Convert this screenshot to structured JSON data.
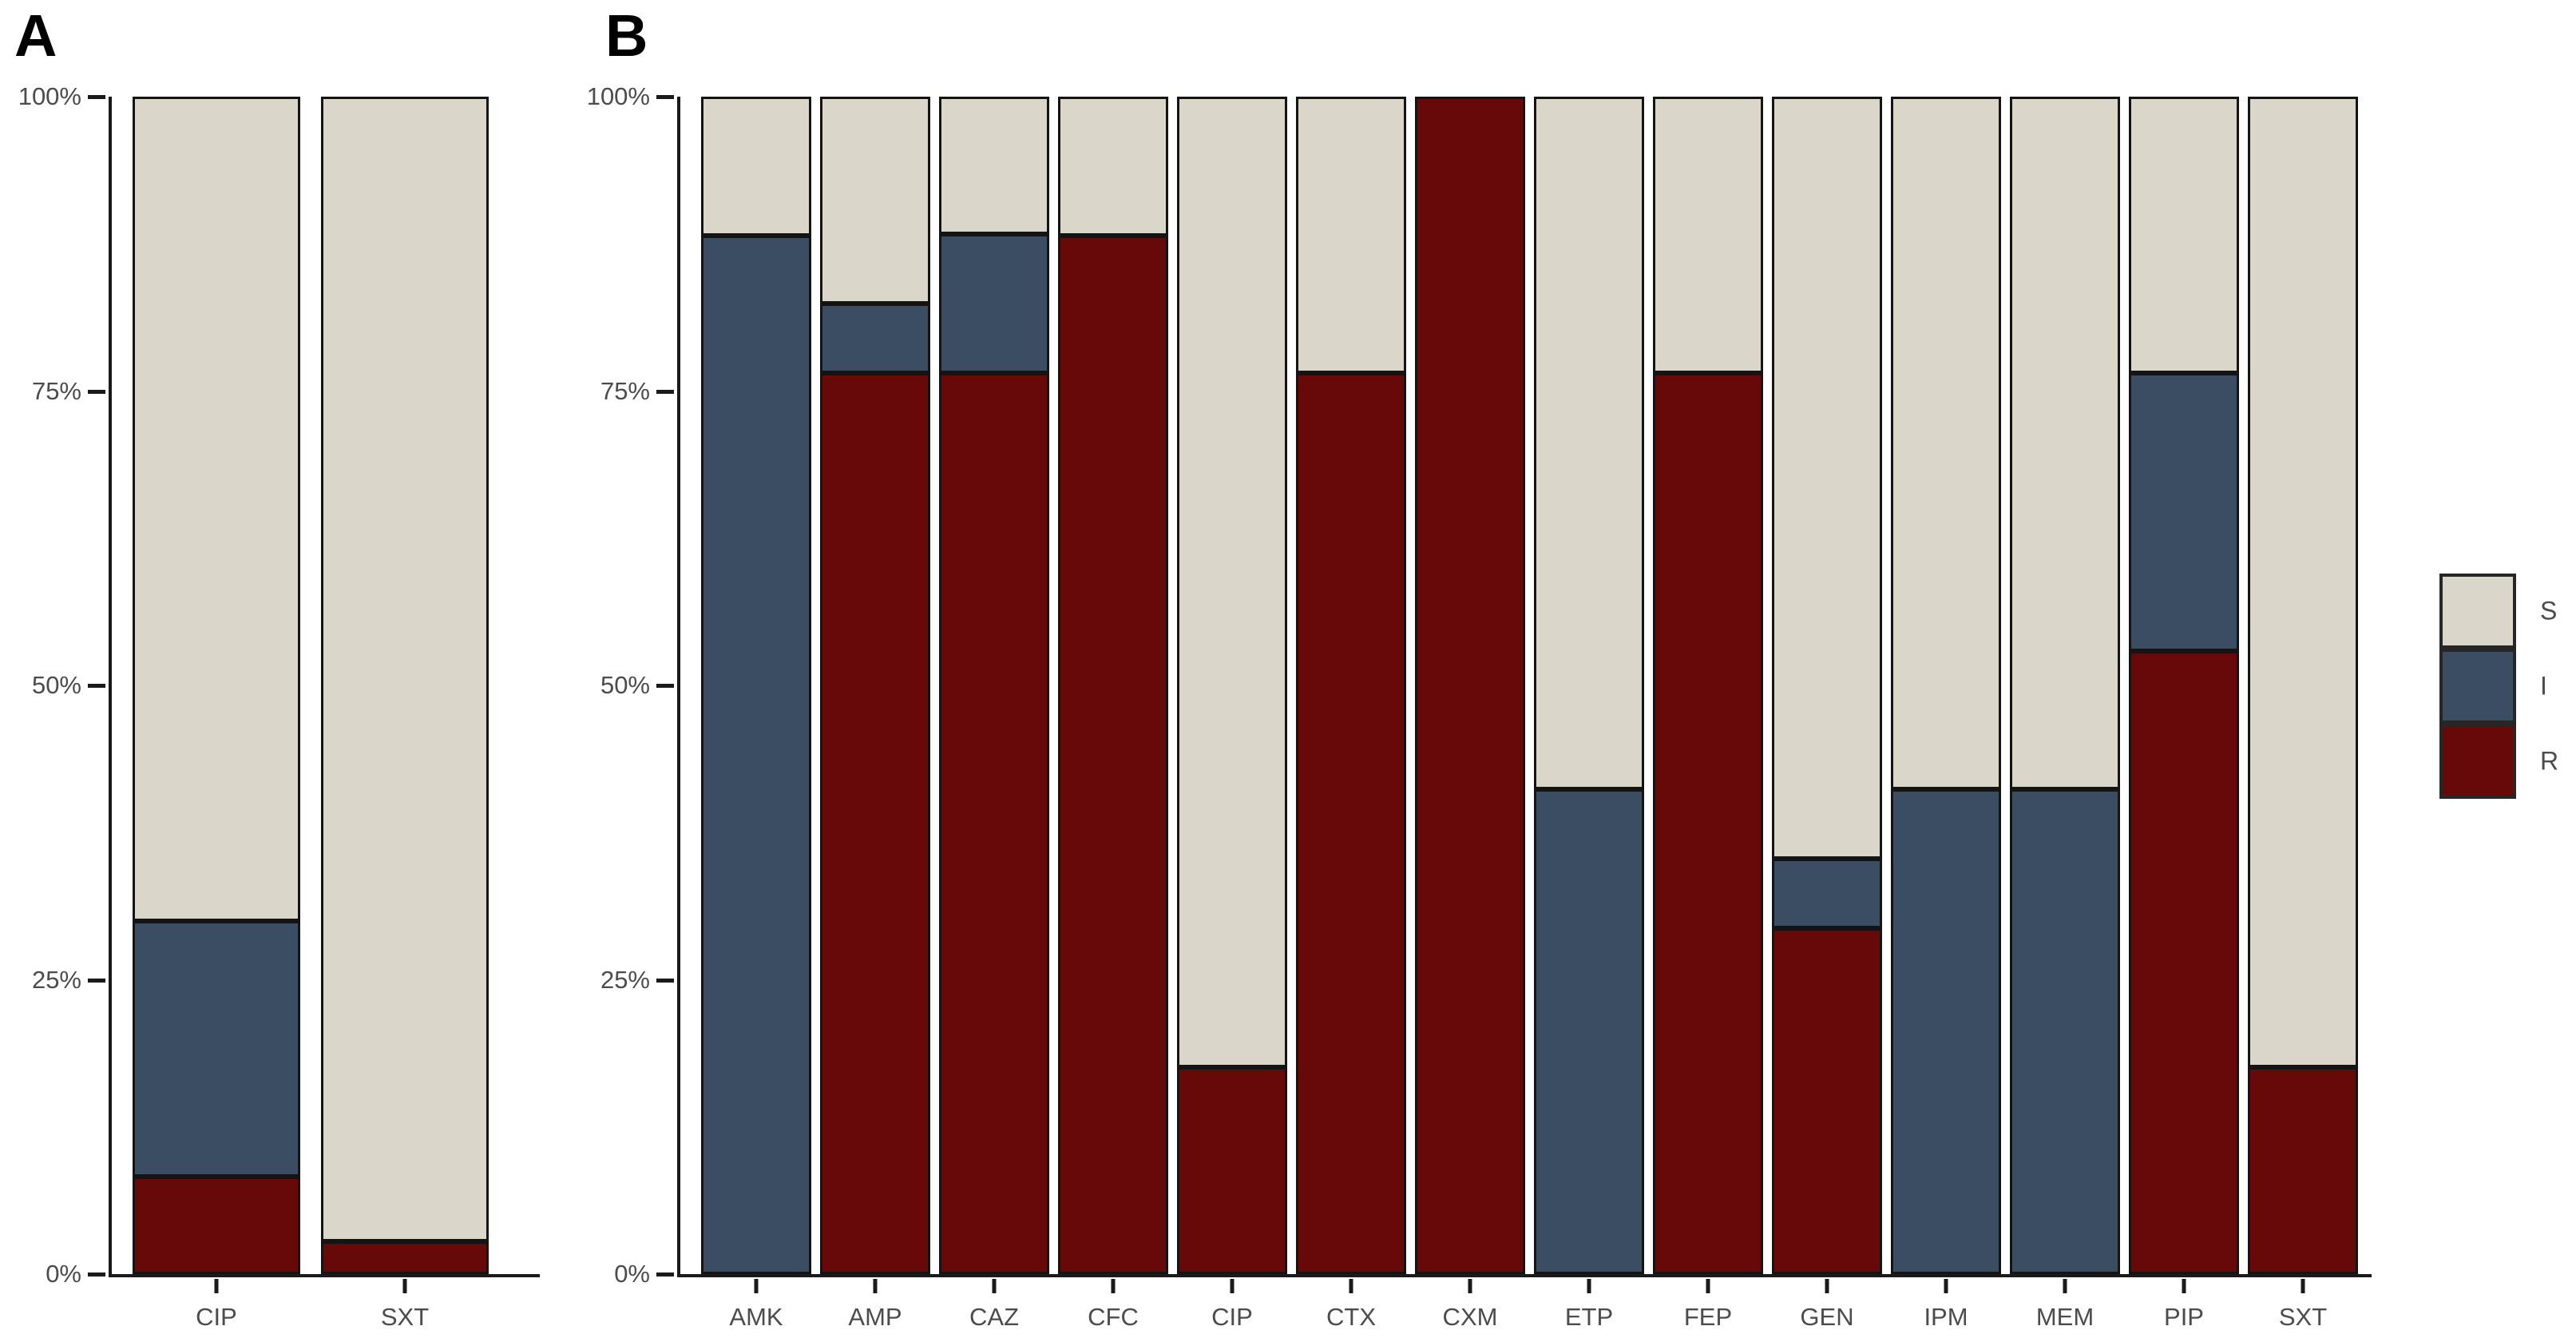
{
  "figure": {
    "panel_a_label": "A",
    "panel_b_label": "B"
  },
  "colors": {
    "S": "#dad6c9",
    "I": "#3b4d63",
    "R": "#670809",
    "outline": "#141414",
    "axis": "#1a1a1a",
    "tick_text": "#4c4c4c"
  },
  "legend": {
    "position": "right",
    "entries": [
      {
        "label": "S",
        "color": "#dad6c9"
      },
      {
        "label": "I",
        "color": "#3b4d63"
      },
      {
        "label": "R",
        "color": "#670809"
      }
    ]
  },
  "chart_data": [
    {
      "type": "bar",
      "stacked": true,
      "panel_label": "A",
      "title": "",
      "xlabel": "",
      "ylabel": "",
      "ylim": [
        0,
        100
      ],
      "grid": false,
      "yticks": [
        {
          "pos": 0,
          "label": "0%"
        },
        {
          "pos": 25,
          "label": "25%"
        },
        {
          "pos": 50,
          "label": "50%"
        },
        {
          "pos": 75,
          "label": "75%"
        },
        {
          "pos": 100,
          "label": "100%"
        }
      ],
      "categories": [
        "CIP",
        "SXT"
      ],
      "series": [
        {
          "name": "R",
          "values": [
            8.3,
            2.8
          ]
        },
        {
          "name": "I",
          "values": [
            21.7,
            0
          ]
        },
        {
          "name": "S",
          "values": [
            70.0,
            97.2
          ]
        }
      ]
    },
    {
      "type": "bar",
      "stacked": true,
      "panel_label": "B",
      "title": "",
      "xlabel": "",
      "ylabel": "",
      "ylim": [
        0,
        100
      ],
      "grid": false,
      "yticks": [
        {
          "pos": 0,
          "label": "0%"
        },
        {
          "pos": 25,
          "label": "25%"
        },
        {
          "pos": 50,
          "label": "50%"
        },
        {
          "pos": 75,
          "label": "75%"
        },
        {
          "pos": 100,
          "label": "100%"
        }
      ],
      "categories": [
        "AMK",
        "AMP",
        "CAZ",
        "CFC",
        "CIP",
        "CTX",
        "CXM",
        "ETP",
        "FEP",
        "GEN",
        "IPM",
        "MEM",
        "PIP",
        "SXT"
      ],
      "series": [
        {
          "name": "R",
          "values": [
            0,
            76.5,
            76.5,
            88.2,
            17.6,
            76.5,
            100,
            0,
            76.5,
            29.4,
            0,
            0,
            52.9,
            17.6
          ]
        },
        {
          "name": "I",
          "values": [
            88.2,
            5.9,
            11.8,
            0,
            0,
            0,
            0,
            41.2,
            0,
            5.9,
            41.2,
            41.2,
            23.6,
            0
          ]
        },
        {
          "name": "S",
          "values": [
            11.8,
            17.6,
            11.7,
            11.8,
            82.4,
            23.5,
            0,
            58.8,
            23.5,
            64.7,
            58.8,
            58.8,
            23.5,
            82.4
          ]
        }
      ]
    }
  ]
}
